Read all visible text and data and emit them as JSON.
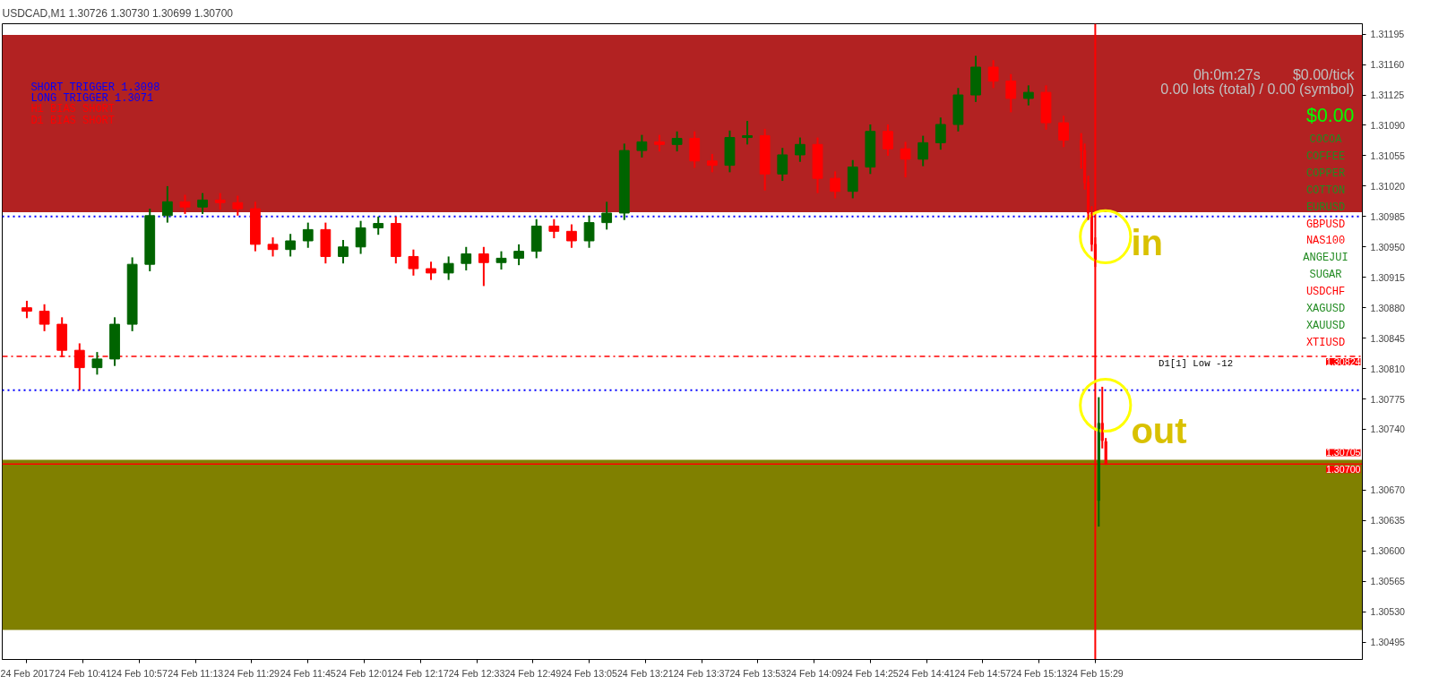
{
  "chart_data": {
    "type": "candlestick",
    "title": "USDCAD,M1  1.30726 1.30730 1.30699 1.30700",
    "x": [
      "2017-02-24T10:25",
      "2017-02-24T10:30",
      "2017-02-24T10:35",
      "2017-02-24T10:40",
      "2017-02-24T10:45",
      "2017-02-24T10:50",
      "2017-02-24T10:55",
      "2017-02-24T11:00",
      "2017-02-24T11:05",
      "2017-02-24T11:10",
      "2017-02-24T11:15",
      "2017-02-24T11:20",
      "2017-02-24T11:25",
      "2017-02-24T11:30",
      "2017-02-24T11:35",
      "2017-02-24T11:40",
      "2017-02-24T11:45",
      "2017-02-24T11:50",
      "2017-02-24T11:55",
      "2017-02-24T12:00",
      "2017-02-24T12:05",
      "2017-02-24T12:10",
      "2017-02-24T12:15",
      "2017-02-24T12:20",
      "2017-02-24T12:25",
      "2017-02-24T12:30",
      "2017-02-24T12:35",
      "2017-02-24T12:40",
      "2017-02-24T12:45",
      "2017-02-24T12:50",
      "2017-02-24T12:55",
      "2017-02-24T13:00",
      "2017-02-24T13:05",
      "2017-02-24T13:10",
      "2017-02-24T13:15",
      "2017-02-24T13:20",
      "2017-02-24T13:25",
      "2017-02-24T13:30",
      "2017-02-24T13:35",
      "2017-02-24T13:40",
      "2017-02-24T13:45",
      "2017-02-24T13:50",
      "2017-02-24T13:55",
      "2017-02-24T14:00",
      "2017-02-24T14:05",
      "2017-02-24T14:10",
      "2017-02-24T14:15",
      "2017-02-24T14:20",
      "2017-02-24T14:25",
      "2017-02-24T14:30",
      "2017-02-24T14:35",
      "2017-02-24T14:40",
      "2017-02-24T14:45",
      "2017-02-24T14:50",
      "2017-02-24T14:55",
      "2017-02-24T15:00",
      "2017-02-24T15:05",
      "2017-02-24T15:10",
      "2017-02-24T15:15",
      "2017-02-24T15:20",
      "2017-02-24T15:25",
      "2017-02-24T15:26",
      "2017-02-24T15:27",
      "2017-02-24T15:28",
      "2017-02-24T15:29",
      "2017-02-24T15:30",
      "2017-02-24T15:31",
      "2017-02-24T15:32"
    ],
    "ohlc": [
      [
        1.3088,
        1.30888,
        1.30868,
        1.30876
      ],
      [
        1.30876,
        1.30884,
        1.30853,
        1.30861
      ],
      [
        1.30861,
        1.30869,
        1.30823,
        1.30831
      ],
      [
        1.30831,
        1.30839,
        1.30785,
        1.30811
      ],
      [
        1.30811,
        1.30829,
        1.30803,
        1.30821
      ],
      [
        1.30821,
        1.30869,
        1.30813,
        1.30861
      ],
      [
        1.30861,
        1.30938,
        1.30853,
        1.3093
      ],
      [
        1.3093,
        1.30994,
        1.30922,
        1.30986
      ],
      [
        1.30986,
        1.3102,
        1.30978,
        1.31002
      ],
      [
        1.31002,
        1.3101,
        1.30988,
        1.30996
      ],
      [
        1.30996,
        1.31012,
        1.30988,
        1.31004
      ],
      [
        1.31004,
        1.31012,
        1.30993,
        1.31001
      ],
      [
        1.31001,
        1.31009,
        1.30986,
        1.30994
      ],
      [
        1.30994,
        1.31002,
        1.30945,
        1.30953
      ],
      [
        1.30953,
        1.30961,
        1.30939,
        1.30947
      ],
      [
        1.30947,
        1.30965,
        1.30939,
        1.30957
      ],
      [
        1.30957,
        1.30978,
        1.30949,
        1.3097
      ],
      [
        1.3097,
        1.30978,
        1.30931,
        1.30939
      ],
      [
        1.30939,
        1.30958,
        1.30931,
        1.3095
      ],
      [
        1.3095,
        1.3098,
        1.30942,
        1.30972
      ],
      [
        1.30972,
        1.30985,
        1.30964,
        1.30977
      ],
      [
        1.30977,
        1.30985,
        1.30931,
        1.30939
      ],
      [
        1.30939,
        1.30947,
        1.30917,
        1.30925
      ],
      [
        1.30925,
        1.30933,
        1.30912,
        1.3092
      ],
      [
        1.3092,
        1.30939,
        1.30912,
        1.30931
      ],
      [
        1.30931,
        1.3095,
        1.30923,
        1.30942
      ],
      [
        1.30942,
        1.3095,
        1.30905,
        1.30932
      ],
      [
        1.30932,
        1.30945,
        1.30924,
        1.30937
      ],
      [
        1.30937,
        1.30953,
        1.30929,
        1.30945
      ],
      [
        1.30945,
        1.30982,
        1.30937,
        1.30974
      ],
      [
        1.30974,
        1.30982,
        1.3096,
        1.30968
      ],
      [
        1.30968,
        1.30976,
        1.30949,
        1.30957
      ],
      [
        1.30957,
        1.30986,
        1.30949,
        1.30978
      ],
      [
        1.30978,
        1.31002,
        1.3097,
        1.30989
      ],
      [
        1.30989,
        1.31069,
        1.30981,
        1.31061
      ],
      [
        1.31061,
        1.31079,
        1.31053,
        1.31071
      ],
      [
        1.31071,
        1.31079,
        1.3106,
        1.31068
      ],
      [
        1.31068,
        1.31083,
        1.3106,
        1.31075
      ],
      [
        1.31075,
        1.31083,
        1.31041,
        1.31049
      ],
      [
        1.31049,
        1.31057,
        1.31036,
        1.31044
      ],
      [
        1.31044,
        1.31084,
        1.31036,
        1.31076
      ],
      [
        1.31076,
        1.31095,
        1.31068,
        1.31078
      ],
      [
        1.31078,
        1.31086,
        1.31015,
        1.31034
      ],
      [
        1.31034,
        1.31064,
        1.31026,
        1.31056
      ],
      [
        1.31056,
        1.31076,
        1.31048,
        1.31068
      ],
      [
        1.31068,
        1.31076,
        1.31012,
        1.31029
      ],
      [
        1.31029,
        1.31037,
        1.31006,
        1.31014
      ],
      [
        1.31014,
        1.3105,
        1.31006,
        1.31042
      ],
      [
        1.31042,
        1.31091,
        1.31034,
        1.31083
      ],
      [
        1.31083,
        1.31091,
        1.31055,
        1.31063
      ],
      [
        1.31063,
        1.31071,
        1.3103,
        1.31051
      ],
      [
        1.31051,
        1.31078,
        1.31043,
        1.3107
      ],
      [
        1.3107,
        1.31099,
        1.31062,
        1.31091
      ],
      [
        1.31091,
        1.31133,
        1.31083,
        1.31125
      ],
      [
        1.31125,
        1.3117,
        1.31117,
        1.31157
      ],
      [
        1.31157,
        1.31165,
        1.31133,
        1.31141
      ],
      [
        1.31141,
        1.31149,
        1.31105,
        1.31121
      ],
      [
        1.31121,
        1.31136,
        1.31113,
        1.31128
      ],
      [
        1.31128,
        1.31136,
        1.31085,
        1.31093
      ],
      [
        1.31093,
        1.31101,
        1.31065,
        1.31073
      ],
      [
        1.31073,
        1.31081,
        1.3104,
        1.31061
      ],
      [
        1.31061,
        1.31069,
        1.31016,
        1.31024
      ],
      [
        1.31024,
        1.31032,
        1.30981,
        1.30989
      ],
      [
        1.30989,
        1.30997,
        1.30945,
        1.30953
      ],
      [
        1.30953,
        1.30961,
        1.30927,
        1.30935
      ],
      [
        1.30658,
        1.30777,
        1.30628,
        1.30747
      ],
      [
        1.30747,
        1.30789,
        1.30718,
        1.30727
      ],
      [
        1.30726,
        1.3073,
        1.30699,
        1.307
      ]
    ],
    "xlim": [
      "2017-02-24T10:18",
      "2017-02-24T16:45"
    ],
    "xticks": [
      {
        "value": "2017-02-24T10:25",
        "label": "24 Feb 2017"
      },
      {
        "value": "2017-02-24T10:41",
        "label": "24 Feb 10:41"
      },
      {
        "value": "2017-02-24T10:57",
        "label": "24 Feb 10:57"
      },
      {
        "value": "2017-02-24T11:13",
        "label": "24 Feb 11:13"
      },
      {
        "value": "2017-02-24T11:29",
        "label": "24 Feb 11:29"
      },
      {
        "value": "2017-02-24T11:45",
        "label": "24 Feb 11:45"
      },
      {
        "value": "2017-02-24T12:01",
        "label": "24 Feb 12:01"
      },
      {
        "value": "2017-02-24T12:17",
        "label": "24 Feb 12:17"
      },
      {
        "value": "2017-02-24T12:33",
        "label": "24 Feb 12:33"
      },
      {
        "value": "2017-02-24T12:49",
        "label": "24 Feb 12:49"
      },
      {
        "value": "2017-02-24T13:05",
        "label": "24 Feb 13:05"
      },
      {
        "value": "2017-02-24T13:21",
        "label": "24 Feb 13:21"
      },
      {
        "value": "2017-02-24T13:37",
        "label": "24 Feb 13:37"
      },
      {
        "value": "2017-02-24T13:53",
        "label": "24 Feb 13:53"
      },
      {
        "value": "2017-02-24T14:09",
        "label": "24 Feb 14:09"
      },
      {
        "value": "2017-02-24T14:25",
        "label": "24 Feb 14:25"
      },
      {
        "value": "2017-02-24T14:41",
        "label": "24 Feb 14:41"
      },
      {
        "value": "2017-02-24T14:57",
        "label": "24 Feb 14:57"
      },
      {
        "value": "2017-02-24T15:13",
        "label": "24 Feb 15:13"
      },
      {
        "value": "2017-02-24T15:29",
        "label": "24 Feb 15:29"
      }
    ],
    "ylim": [
      1.30475,
      1.31207
    ],
    "yticks": [
      {
        "value": 1.31195,
        "label": "1.31195"
      },
      {
        "value": 1.3116,
        "label": "1.31160"
      },
      {
        "value": 1.31125,
        "label": "1.31125"
      },
      {
        "value": 1.3109,
        "label": "1.31090"
      },
      {
        "value": 1.31055,
        "label": "1.31055"
      },
      {
        "value": 1.3102,
        "label": "1.31020"
      },
      {
        "value": 1.30985,
        "label": "1.30985"
      },
      {
        "value": 1.3095,
        "label": "1.30950"
      },
      {
        "value": 1.30915,
        "label": "1.30915"
      },
      {
        "value": 1.3088,
        "label": "1.30880"
      },
      {
        "value": 1.30845,
        "label": "1.30845"
      },
      {
        "value": 1.3081,
        "label": "1.30810"
      },
      {
        "value": 1.30775,
        "label": "1.30775"
      },
      {
        "value": 1.3074,
        "label": "1.30740"
      },
      {
        "value": 1.3067,
        "label": "1.30670"
      },
      {
        "value": 1.30635,
        "label": "1.30635"
      },
      {
        "value": 1.306,
        "label": "1.30600"
      },
      {
        "value": 1.30565,
        "label": "1.30565"
      },
      {
        "value": 1.3053,
        "label": "1.30530"
      },
      {
        "value": 1.30495,
        "label": "1.30495"
      }
    ],
    "bands": [
      {
        "axis": "y",
        "from": 1.3099,
        "to": 1.31194,
        "color": "#b22222"
      },
      {
        "axis": "y",
        "from": 1.30509,
        "to": 1.30705,
        "color": "#808000",
        "label": "1.30705"
      }
    ],
    "ref_lines": [
      {
        "axis": "y",
        "value": 1.30824,
        "label": "1.30824",
        "color": "#ff0000",
        "line_style": "dashed"
      },
      {
        "axis": "y",
        "value": 1.307,
        "label": "1.30700",
        "color": "#ff0000",
        "line_style": "solid"
      },
      {
        "axis": "y",
        "value": 1.30985,
        "color": "#0000ff",
        "line_style": "dotted"
      },
      {
        "axis": "y",
        "value": 1.30785,
        "color": "#0000ff",
        "line_style": "dotted"
      },
      {
        "axis": "x",
        "value": "2017-02-24T15:29",
        "color": "#ff0000",
        "line_style": "solid"
      }
    ],
    "annotations": [
      "SHORT TRIGGER 1.3098",
      "LONG TRIGGER  1.3071",
      "H1 BIAS SHORT",
      "D1 BIAS SHORT",
      "0h:0m:27s",
      "$0.00/tick",
      "0.00 lots (total) / 0.00 (symbol)",
      "$0.00",
      "COCOA",
      "COFFEE",
      "COPPER",
      "COTTON",
      "EURUSD",
      "GBPUSD",
      "NAS100",
      "ANGEJUI",
      "SUGAR",
      "USDCHF",
      "XAGUSD",
      "XAUUSD",
      "XTIUSD",
      {
        "text": "D1[1] Low   -12",
        "x": "2017-02-24T15:47",
        "y": 1.30824
      },
      "in",
      "out"
    ],
    "grid": false
  }
}
